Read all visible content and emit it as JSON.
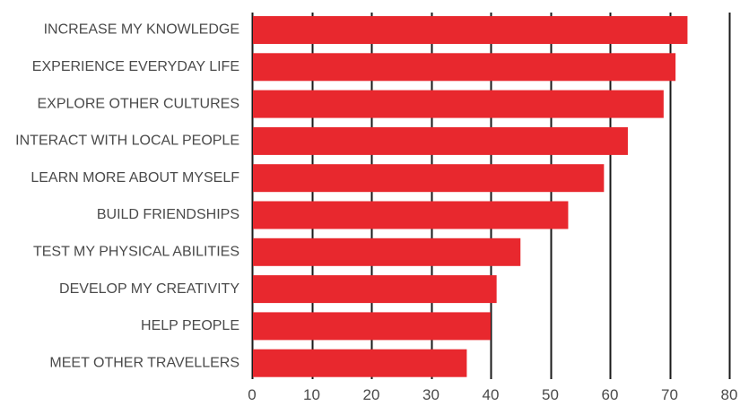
{
  "chart_data": {
    "type": "bar",
    "orientation": "horizontal",
    "title": "",
    "xlabel": "",
    "ylabel": "",
    "categories": [
      "INCREASE MY KNOWLEDGE",
      "EXPERIENCE EVERYDAY LIFE",
      "EXPLORE OTHER CULTURES",
      "INTERACT WITH LOCAL PEOPLE",
      "LEARN MORE ABOUT MYSELF",
      "BUILD FRIENDSHIPS",
      "TEST MY PHYSICAL ABILITIES",
      "DEVELOP MY CREATIVITY",
      "HELP PEOPLE",
      "MEET OTHER TRAVELLERS"
    ],
    "values": [
      73,
      71,
      69,
      63,
      59,
      53,
      45,
      41,
      40,
      36
    ],
    "xlim": [
      0,
      80
    ],
    "xticks": [
      "0",
      "10",
      "20",
      "30",
      "40",
      "50",
      "60",
      "70",
      "80"
    ],
    "grid": "vertical",
    "legend": "none",
    "bar_color": "#e8282e",
    "grid_color": "#1a1a1a",
    "text_color": "#4a4a4a"
  }
}
